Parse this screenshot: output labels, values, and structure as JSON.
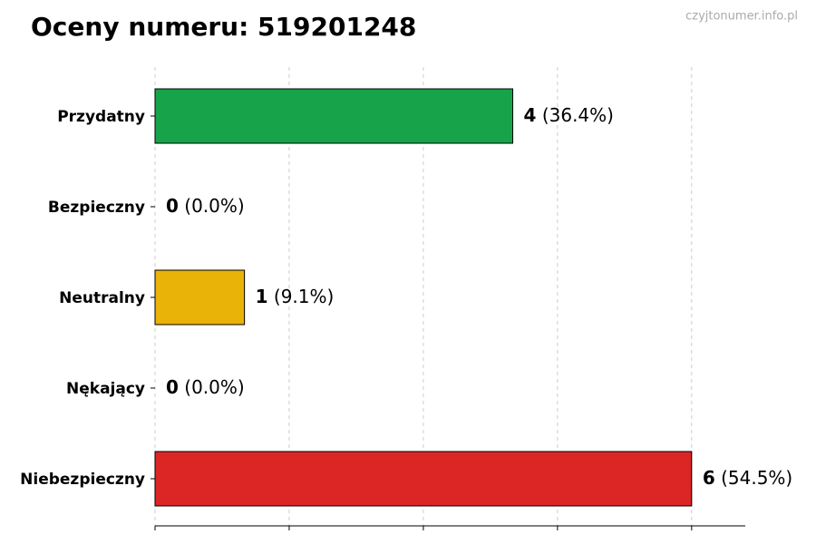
{
  "chart_data": {
    "type": "barh",
    "title": "Oceny numeru: 519201248",
    "watermark": "czyjtonumer.info.pl",
    "categories": [
      "Przydatny",
      "Bezpieczny",
      "Neutralny",
      "Nękający",
      "Niebezpieczny"
    ],
    "values": [
      4,
      0,
      1,
      0,
      6
    ],
    "shares": [
      "(36.4%)",
      "(0.0%)",
      "(9.1%)",
      "(0.0%)",
      "(54.5%)"
    ],
    "colors": [
      "#16a34a",
      "#2563eb",
      "#eab308",
      "#f97316",
      "#dc2626"
    ],
    "xlim": [
      0,
      6.6
    ],
    "xticks": [
      0,
      1.5,
      3,
      4.5,
      6
    ],
    "grid": true
  }
}
